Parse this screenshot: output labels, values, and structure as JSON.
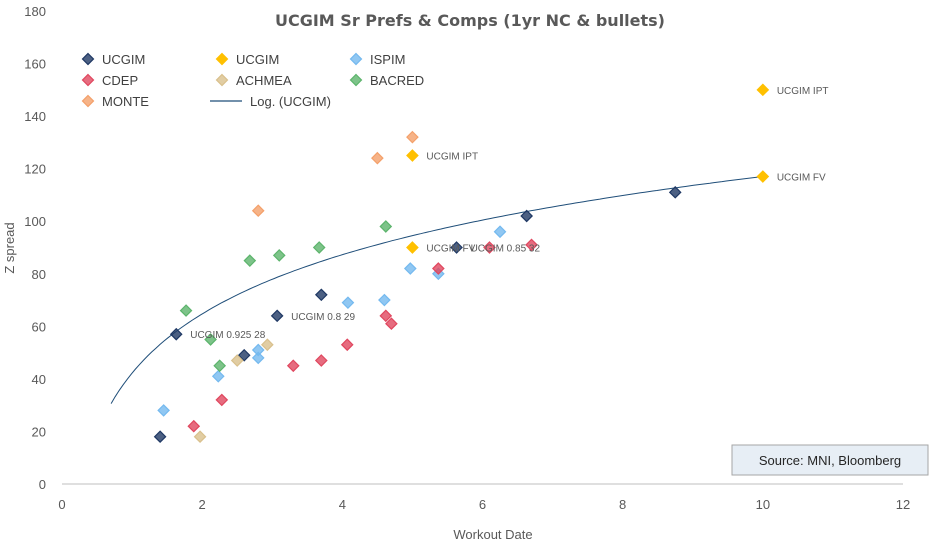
{
  "chart_data": {
    "type": "scatter",
    "title": "UCGIM Sr Prefs & Comps (1yr NC & bullets)",
    "xlabel": "Workout Date",
    "ylabel": "Z spread",
    "xlim": [
      0,
      12
    ],
    "ylim": [
      0,
      180
    ],
    "x_ticks": [
      0,
      2,
      4,
      6,
      8,
      10,
      12
    ],
    "y_ticks": [
      0,
      20,
      40,
      60,
      80,
      100,
      120,
      140,
      160,
      180
    ],
    "grid": false,
    "legend_position": "top-left",
    "source": "Source: MNI, Bloomberg",
    "series": [
      {
        "name": "UCGIM",
        "color": "#1F3864",
        "points": [
          [
            1.4,
            18
          ],
          [
            1.63,
            57
          ],
          [
            2.6,
            49
          ],
          [
            3.07,
            64
          ],
          [
            3.7,
            72
          ],
          [
            5.63,
            90
          ],
          [
            6.63,
            102
          ],
          [
            8.75,
            111
          ]
        ]
      },
      {
        "name": "UCGIM",
        "color": "#FFC000",
        "points": [
          [
            5.0,
            125
          ],
          [
            5.0,
            90
          ],
          [
            10.0,
            150
          ],
          [
            10.0,
            117
          ]
        ]
      },
      {
        "name": "ISPIM",
        "color": "#74B9EF",
        "points": [
          [
            1.45,
            28
          ],
          [
            2.23,
            41
          ],
          [
            2.8,
            48
          ],
          [
            2.8,
            51
          ],
          [
            4.08,
            69
          ],
          [
            4.6,
            70
          ],
          [
            4.97,
            82
          ],
          [
            5.37,
            80
          ],
          [
            6.25,
            96
          ]
        ]
      },
      {
        "name": "CDEP",
        "color": "#E0475F",
        "points": [
          [
            1.88,
            22
          ],
          [
            2.28,
            32
          ],
          [
            3.3,
            45
          ],
          [
            3.7,
            47
          ],
          [
            4.07,
            53
          ],
          [
            4.62,
            64
          ],
          [
            4.7,
            61
          ],
          [
            5.37,
            82
          ],
          [
            6.1,
            90
          ],
          [
            6.7,
            91
          ]
        ]
      },
      {
        "name": "ACHMEA",
        "color": "#D9C08C",
        "points": [
          [
            1.97,
            18
          ],
          [
            2.5,
            47
          ],
          [
            2.93,
            53
          ]
        ]
      },
      {
        "name": "BACRED",
        "color": "#5CB46C",
        "points": [
          [
            1.77,
            66
          ],
          [
            2.12,
            55
          ],
          [
            2.25,
            45
          ],
          [
            2.68,
            85
          ],
          [
            3.1,
            87
          ],
          [
            3.67,
            90
          ],
          [
            4.62,
            98
          ]
        ]
      },
      {
        "name": "MONTE",
        "color": "#F4A06A",
        "points": [
          [
            2.8,
            104
          ],
          [
            4.5,
            124
          ],
          [
            5.0,
            132
          ]
        ]
      }
    ],
    "trendline": {
      "name": "Log. (UCGIM)",
      "type": "logarithmic",
      "color": "#1F4E79",
      "a": 32.5,
      "b": 42.2,
      "x_range": [
        0.7,
        10.0
      ]
    },
    "annotations": [
      {
        "text": "UCGIM IPT",
        "x": 5.0,
        "y": 125
      },
      {
        "text": "UCGIM FV",
        "x": 5.0,
        "y": 90
      },
      {
        "text": "UCGIM 0.85 32",
        "x": 5.63,
        "y": 90
      },
      {
        "text": "UCGIM IPT",
        "x": 10.0,
        "y": 150
      },
      {
        "text": "UCGIM FV",
        "x": 10.0,
        "y": 117
      },
      {
        "text": "UCGIM 0.925 28",
        "x": 1.63,
        "y": 57
      },
      {
        "text": "UCGIM 0.8 29",
        "x": 3.07,
        "y": 64
      }
    ]
  }
}
